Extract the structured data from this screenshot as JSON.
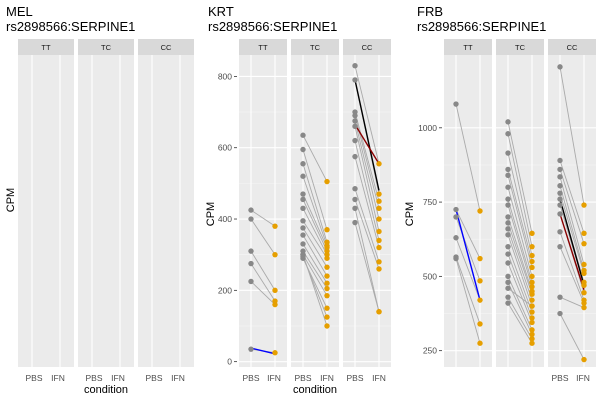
{
  "chart_data": [
    {
      "type": "scatter",
      "title_line1": "MEL",
      "title_line2": "rs2898566:SERPINE1",
      "xlabel": "condition",
      "ylabel": "CPM",
      "facets": [
        "TT",
        "TC",
        "CC"
      ],
      "x_categories": [
        "PBS",
        "IFN"
      ],
      "yticks": [],
      "ylim": [
        0,
        1
      ],
      "grid": true,
      "colors": {
        "PBS": "#888888",
        "IFN": "#E69F00"
      },
      "panels": [
        {
          "facet": "TT",
          "pairs": [],
          "mean_line": null
        },
        {
          "facet": "TC",
          "pairs": [],
          "mean_line": null
        },
        {
          "facet": "CC",
          "pairs": [],
          "mean_line": null
        }
      ]
    },
    {
      "type": "scatter",
      "title_line1": "KRT",
      "title_line2": "rs2898566:SERPINE1",
      "xlabel": "condition",
      "ylabel": "CPM",
      "facets": [
        "TT",
        "TC",
        "CC"
      ],
      "x_categories": [
        "PBS",
        "IFN"
      ],
      "yticks": [
        0,
        200,
        400,
        600,
        800
      ],
      "ylim": [
        -15,
        860
      ],
      "grid": true,
      "colors": {
        "PBS": "#888888",
        "IFN": "#E69F00"
      },
      "panels": [
        {
          "facet": "TT",
          "pairs": [
            [
              425,
              380
            ],
            [
              400,
              300
            ],
            [
              310,
              200
            ],
            [
              275,
              170
            ],
            [
              225,
              160
            ],
            [
              35,
              25
            ]
          ],
          "mean_line": {
            "pbs": 38,
            "ifn": 22,
            "color": "#0000FF"
          }
        },
        {
          "facet": "TC",
          "pairs": [
            [
              635,
              505
            ],
            [
              595,
              370
            ],
            [
              555,
              335
            ],
            [
              520,
              325
            ],
            [
              470,
              320
            ],
            [
              455,
              310
            ],
            [
              430,
              300
            ],
            [
              395,
              290
            ],
            [
              375,
              265
            ],
            [
              355,
              240
            ],
            [
              330,
              220
            ],
            [
              310,
              205
            ],
            [
              300,
              185
            ],
            [
              290,
              150
            ],
            [
              295,
              125
            ],
            [
              300,
              100
            ]
          ],
          "mean_line": null
        },
        {
          "facet": "CC",
          "pairs": [
            [
              830,
              555
            ],
            [
              790,
              470
            ],
            [
              700,
              450
            ],
            [
              690,
              430
            ],
            [
              675,
              400
            ],
            [
              660,
              365
            ],
            [
              620,
              340
            ],
            [
              575,
              320
            ],
            [
              485,
              280
            ],
            [
              455,
              260
            ],
            [
              430,
              140
            ],
            [
              390,
              140
            ]
          ],
          "mean_line": {
            "pbs": 790,
            "ifn": 480,
            "color": "#000000",
            "pbs2": 665,
            "ifn2": 555,
            "color2": "#8B0000"
          }
        }
      ]
    },
    {
      "type": "scatter",
      "title_line1": "FRB",
      "title_line2": "rs2898566:SERPINE1",
      "xlabel": "condition",
      "ylabel": "CPM",
      "facets": [
        "TT",
        "TC",
        "CC"
      ],
      "x_categories": [
        "PBS",
        "IFN"
      ],
      "yticks": [
        250,
        500,
        750,
        1000
      ],
      "ylim": [
        195,
        1245
      ],
      "grid": true,
      "colors": {
        "PBS": "#888888",
        "IFN": "#E69F00"
      },
      "panels": [
        {
          "facet": "TT",
          "pairs": [
            [
              1080,
              720
            ],
            [
              725,
              560
            ],
            [
              700,
              485
            ],
            [
              630,
              420
            ],
            [
              565,
              340
            ],
            [
              560,
              275
            ]
          ],
          "mean_line": {
            "pbs": 725,
            "ifn": 420,
            "color": "#0000FF"
          }
        },
        {
          "facet": "TC",
          "pairs": [
            [
              1020,
              645
            ],
            [
              980,
              600
            ],
            [
              915,
              570
            ],
            [
              860,
              550
            ],
            [
              840,
              530
            ],
            [
              800,
              500
            ],
            [
              760,
              480
            ],
            [
              740,
              465
            ],
            [
              700,
              450
            ],
            [
              680,
              440
            ],
            [
              660,
              420
            ],
            [
              640,
              400
            ],
            [
              600,
              380
            ],
            [
              575,
              360
            ],
            [
              545,
              345
            ],
            [
              500,
              320
            ],
            [
              480,
              305
            ],
            [
              430,
              290
            ],
            [
              410,
              275
            ],
            [
              460,
              400
            ]
          ],
          "mean_line": null
        },
        {
          "facet": "CC",
          "pairs": [
            [
              1205,
              740
            ],
            [
              890,
              645
            ],
            [
              860,
              610
            ],
            [
              835,
              540
            ],
            [
              805,
              520
            ],
            [
              780,
              510
            ],
            [
              760,
              480
            ],
            [
              740,
              470
            ],
            [
              710,
              445
            ],
            [
              650,
              420
            ],
            [
              600,
              410
            ],
            [
              430,
              395
            ],
            [
              375,
              220
            ]
          ],
          "mean_line": {
            "pbs": 760,
            "ifn": 470,
            "color": "#000000",
            "pbs2": 710,
            "ifn2": 455,
            "color2": "#8B0000"
          }
        }
      ]
    }
  ]
}
